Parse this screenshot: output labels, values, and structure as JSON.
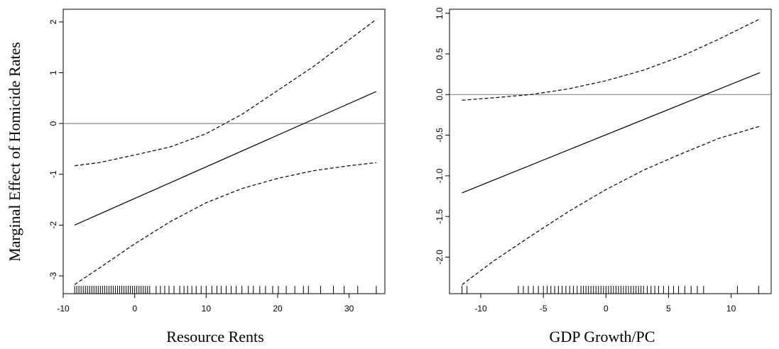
{
  "figure": {
    "ylabel": "Marginal Effect of Homicide Rates"
  },
  "chart_data": [
    {
      "type": "line",
      "xlabel": "Resource Rents",
      "ylabel": "Marginal Effect of Homicide Rates",
      "xlim": [
        -10,
        35
      ],
      "ylim": [
        -3.35,
        2.25
      ],
      "xticks": [
        -10,
        0,
        10,
        20,
        30
      ],
      "yticks": [
        -3,
        -2,
        -1,
        0,
        1,
        2
      ],
      "ytick_labels": [
        "-3",
        "-2",
        "-1",
        "0",
        "1",
        "2"
      ],
      "reference_line_y": 0,
      "grid": false,
      "series": [
        {
          "style": "solid",
          "x": [
            -8.4,
            33.8
          ],
          "y": [
            -2.0,
            0.63
          ]
        },
        {
          "style": "dashed",
          "x": [
            -8.4,
            -5,
            0,
            5,
            10,
            15,
            20,
            25,
            30,
            33.8
          ],
          "y": [
            -0.83,
            -0.77,
            -0.62,
            -0.46,
            -0.2,
            0.18,
            0.65,
            1.12,
            1.65,
            2.05
          ]
        },
        {
          "style": "dashed",
          "x": [
            -8.4,
            -5,
            0,
            5,
            10,
            15,
            20,
            25,
            30,
            33.8
          ],
          "y": [
            -3.17,
            -2.85,
            -2.37,
            -1.93,
            -1.56,
            -1.28,
            -1.08,
            -0.93,
            -0.83,
            -0.77
          ]
        }
      ],
      "rug": [
        -8.4,
        -8.1,
        -7.8,
        -7.5,
        -7.2,
        -6.9,
        -6.6,
        -6.3,
        -6.0,
        -5.7,
        -5.4,
        -5.1,
        -4.8,
        -4.5,
        -4.2,
        -3.9,
        -3.6,
        -3.3,
        -3.0,
        -2.7,
        -2.4,
        -2.1,
        -1.8,
        -1.5,
        -1.2,
        -0.9,
        -0.6,
        -0.3,
        0.0,
        0.3,
        0.6,
        0.9,
        1.2,
        1.5,
        1.8,
        2.1,
        3.0,
        3.6,
        4.2,
        4.8,
        5.5,
        6.3,
        6.9,
        7.4,
        8.0,
        8.6,
        9.3,
        10.0,
        10.8,
        11.5,
        12.1,
        12.8,
        13.5,
        14.2,
        15.0,
        15.9,
        16.6,
        17.5,
        18.3,
        19.3,
        20.1,
        21.2,
        22.4,
        23.6,
        24.3,
        26.0,
        27.8,
        29.3,
        31.2,
        33.8
      ]
    },
    {
      "type": "line",
      "xlabel": "GDP Growth/PC",
      "xlim": [
        -12.5,
        13.2
      ],
      "ylim": [
        -2.45,
        1.05
      ],
      "xticks": [
        -10,
        -5,
        0,
        5,
        10
      ],
      "yticks": [
        -2.0,
        -1.5,
        -1.0,
        -0.5,
        0.0,
        0.5,
        1.0
      ],
      "ytick_labels": [
        "-2.0",
        "-1.5",
        "-1.0",
        "-0.5",
        "0.0",
        "0.5",
        "1.0"
      ],
      "reference_line_y": 0,
      "grid": false,
      "series": [
        {
          "style": "solid",
          "x": [
            -11.5,
            12.3
          ],
          "y": [
            -1.21,
            0.27
          ]
        },
        {
          "style": "dashed",
          "x": [
            -11.5,
            -9,
            -6,
            -3,
            0,
            3,
            6,
            9,
            12.3
          ],
          "y": [
            -0.07,
            -0.04,
            0.0,
            0.07,
            0.17,
            0.3,
            0.47,
            0.68,
            0.93
          ]
        },
        {
          "style": "dashed",
          "x": [
            -11.5,
            -9,
            -6,
            -3,
            0,
            3,
            6,
            9,
            12.3
          ],
          "y": [
            -2.34,
            -2.05,
            -1.74,
            -1.44,
            -1.17,
            -0.93,
            -0.73,
            -0.54,
            -0.39
          ]
        }
      ],
      "rug": [
        -11.5,
        -11.1,
        -7.0,
        -6.6,
        -6.2,
        -5.8,
        -5.4,
        -5.0,
        -4.7,
        -4.4,
        -4.1,
        -3.8,
        -3.5,
        -3.2,
        -2.9,
        -2.6,
        -2.3,
        -2.0,
        -1.8,
        -1.6,
        -1.4,
        -1.2,
        -1.0,
        -0.8,
        -0.6,
        -0.4,
        -0.2,
        0.0,
        0.2,
        0.4,
        0.6,
        0.8,
        1.0,
        1.2,
        1.4,
        1.6,
        1.8,
        2.0,
        2.2,
        2.4,
        2.6,
        2.8,
        3.0,
        3.3,
        3.6,
        3.9,
        4.2,
        4.6,
        5.0,
        5.4,
        5.8,
        6.3,
        6.8,
        7.3,
        7.8,
        10.5,
        12.2
      ]
    }
  ]
}
